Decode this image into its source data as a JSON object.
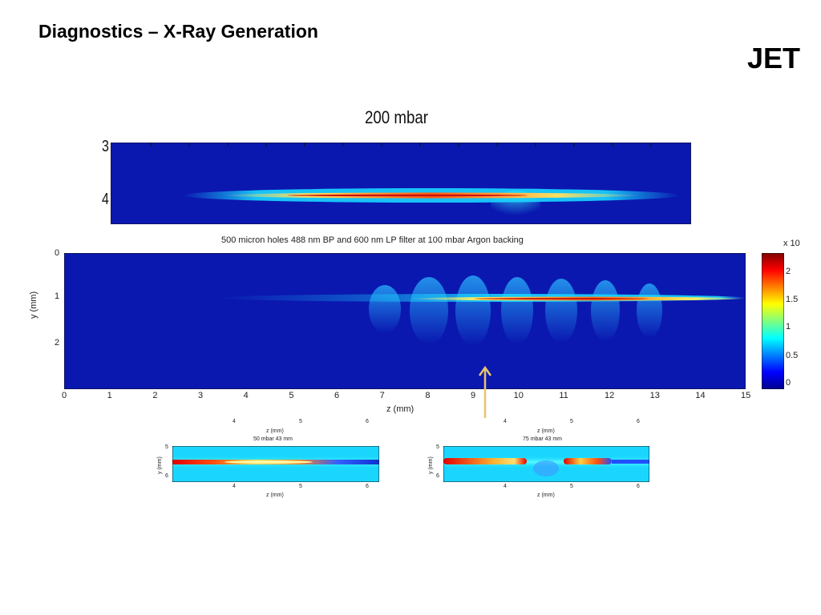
{
  "slide": {
    "title": "Diagnostics – X-Ray Generation",
    "logo": "JET"
  },
  "colors": {
    "deep_blue": "#0a18b0",
    "cyan": "#1ad6ff",
    "arrow": "#e8c36a"
  },
  "chart_data": [
    {
      "type": "heatmap",
      "title": "200 mbar",
      "y_ticks": [
        "3",
        "4"
      ],
      "xlabel": "",
      "ylabel": ""
    },
    {
      "type": "heatmap",
      "title": "500 micron holes 488 nm BP and 600 nm LP filter at 100 mbar Argon backing",
      "xlabel": "z (mm)",
      "ylabel": "y (mm)",
      "x_ticks": [
        "0",
        "1",
        "2",
        "3",
        "4",
        "5",
        "6",
        "7",
        "8",
        "9",
        "10",
        "11",
        "12",
        "13",
        "14",
        "15"
      ],
      "y_ticks": [
        "0",
        "1",
        "2"
      ],
      "xlim": [
        0,
        15
      ],
      "ylim": [
        0,
        3
      ],
      "colorbar": {
        "multiplier": "x 10",
        "ticks": [
          "0",
          "0.5",
          "1",
          "1.5",
          "2"
        ]
      },
      "annotation": "arrow near z = 9.3 mm"
    },
    {
      "type": "heatmap",
      "title": "50 mbar 43 mm",
      "top_xlabel": "z (mm)",
      "top_x_ticks": [
        "4",
        "5",
        "6"
      ],
      "xlabel": "z (mm)",
      "ylabel": "y (mm)",
      "x_ticks": [
        "4",
        "5",
        "6"
      ],
      "y_ticks": [
        "5",
        "6"
      ]
    },
    {
      "type": "heatmap",
      "title": "75 mbar 43 mm",
      "top_xlabel": "z (mm)",
      "top_x_ticks": [
        "4",
        "5",
        "6"
      ],
      "xlabel": "z (mm)",
      "ylabel": "y (mm)",
      "x_ticks": [
        "4",
        "5",
        "6"
      ],
      "y_ticks": [
        "5",
        "6"
      ]
    }
  ]
}
